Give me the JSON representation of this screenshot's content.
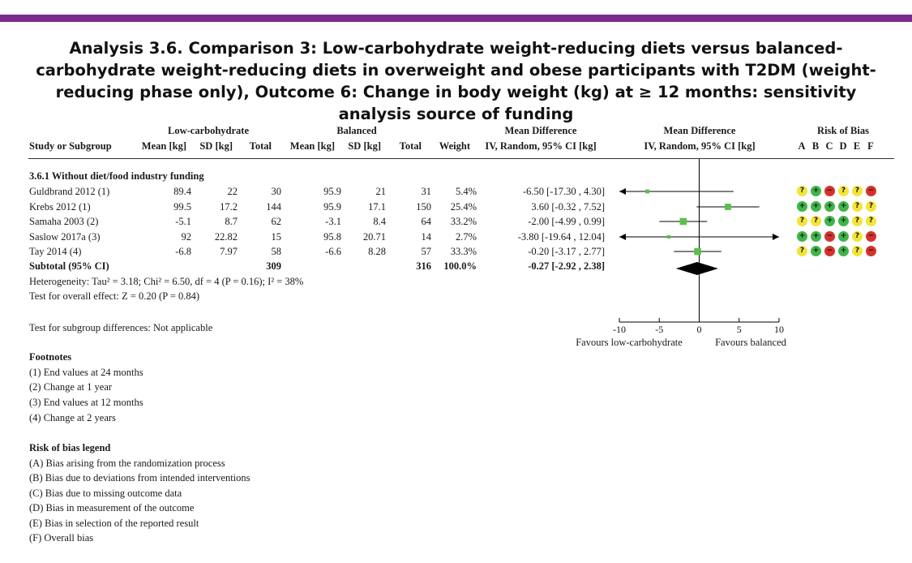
{
  "colors": {
    "accent": "#7b2a8c",
    "marker": "#5ac14a",
    "diamond": "#000000"
  },
  "title": "Analysis 3.6.   Comparison 3: Low-carbohydrate weight-reducing diets versus balanced-carbohydrate weight-reducing diets in overweight and obese participants with T2DM (weight-reducing phase only), Outcome 6: Change in body weight (kg) at ≥ 12 months: sensitivity analysis source of funding",
  "headers": {
    "group1": "Low-carbohydrate",
    "group2": "Balanced",
    "md": "Mean Difference",
    "md_plot": "Mean Difference",
    "rob": "Risk of Bias",
    "study": "Study or Subgroup",
    "mean1": "Mean [kg]",
    "sd1": "SD [kg]",
    "total1": "Total",
    "mean2": "Mean [kg]",
    "sd2": "SD [kg]",
    "total2": "Total",
    "weight": "Weight",
    "ci": "IV, Random, 95% CI [kg]",
    "ci_plot": "IV, Random, 95% CI [kg]",
    "rob_letters": [
      "A",
      "B",
      "C",
      "D",
      "E",
      "F"
    ]
  },
  "subgroup_title": "3.6.1 Without diet/food industry funding",
  "subtotal": {
    "label": "Subtotal (95% CI)",
    "total1": "309",
    "total2": "316",
    "weight": "100.0%",
    "ci": "-0.27 [-2.92 , 2.38]"
  },
  "heterogeneity": "Heterogeneity: Tau² = 3.18; Chi² = 6.50, df = 4 (P = 0.16); I² = 38%",
  "overall_effect": "Test for overall effect: Z = 0.20 (P = 0.84)",
  "subgroup_diff": "Test for subgroup differences: Not applicable",
  "footnotes_title": "Footnotes",
  "footnotes": [
    "(1) End values at 24 months",
    "(2) Change at 1 year",
    "(3) End values at 12 months",
    "(4) Change at 2 years"
  ],
  "legend_title": "Risk of bias legend",
  "legend": [
    "(A) Bias arising from the randomization process",
    "(B) Bias due to deviations from intended interventions",
    "(C) Bias due to missing outcome data",
    "(D) Bias in measurement of the outcome",
    "(E) Bias in selection of the reported result",
    "(F) Overall bias"
  ],
  "rob_symbols": {
    "low": "+",
    "some": "?",
    "high": "−"
  },
  "chart_data": {
    "type": "forest",
    "xlim": [
      -10,
      10
    ],
    "ticks": [
      -10,
      -5,
      0,
      5,
      10
    ],
    "tick_labels": [
      "-10",
      "-5",
      "0",
      "5",
      "10"
    ],
    "favours_left": "Favours low-carbohydrate",
    "favours_right": "Favours balanced",
    "studies": [
      {
        "name": "Guldbrand 2012 (1)",
        "mean1": "89.4",
        "sd1": "22",
        "total1": "30",
        "mean2": "95.9",
        "sd2": "21",
        "total2": "31",
        "weight": "5.4%",
        "ci": "-6.50 [-17.30 , 4.30]",
        "md": -6.5,
        "lo": -17.3,
        "hi": 4.3,
        "w": 5.4,
        "rob": [
          "some",
          "low",
          "high",
          "some",
          "some",
          "high"
        ]
      },
      {
        "name": "Krebs 2012 (1)",
        "mean1": "99.5",
        "sd1": "17.2",
        "total1": "144",
        "mean2": "95.9",
        "sd2": "17.1",
        "total2": "150",
        "weight": "25.4%",
        "ci": "3.60 [-0.32 , 7.52]",
        "md": 3.6,
        "lo": -0.32,
        "hi": 7.52,
        "w": 25.4,
        "rob": [
          "low",
          "low",
          "low",
          "low",
          "some",
          "some"
        ]
      },
      {
        "name": "Samaha 2003 (2)",
        "mean1": "-5.1",
        "sd1": "8.7",
        "total1": "62",
        "mean2": "-3.1",
        "sd2": "8.4",
        "total2": "64",
        "weight": "33.2%",
        "ci": "-2.00 [-4.99 , 0.99]",
        "md": -2.0,
        "lo": -4.99,
        "hi": 0.99,
        "w": 33.2,
        "rob": [
          "some",
          "some",
          "low",
          "low",
          "some",
          "some"
        ]
      },
      {
        "name": "Saslow 2017a (3)",
        "mean1": "92",
        "sd1": "22.82",
        "total1": "15",
        "mean2": "95.8",
        "sd2": "20.71",
        "total2": "14",
        "weight": "2.7%",
        "ci": "-3.80 [-19.64 , 12.04]",
        "md": -3.8,
        "lo": -19.64,
        "hi": 12.04,
        "w": 2.7,
        "rob": [
          "low",
          "low",
          "high",
          "low",
          "some",
          "high"
        ]
      },
      {
        "name": "Tay 2014 (4)",
        "mean1": "-6.8",
        "sd1": "7.97",
        "total1": "58",
        "mean2": "-6.6",
        "sd2": "8.28",
        "total2": "57",
        "weight": "33.3%",
        "ci": "-0.20 [-3.17 , 2.77]",
        "md": -0.2,
        "lo": -3.17,
        "hi": 2.77,
        "w": 33.3,
        "rob": [
          "some",
          "low",
          "high",
          "low",
          "some",
          "high"
        ]
      }
    ],
    "pooled": {
      "md": -0.27,
      "lo": -2.92,
      "hi": 2.38
    }
  }
}
